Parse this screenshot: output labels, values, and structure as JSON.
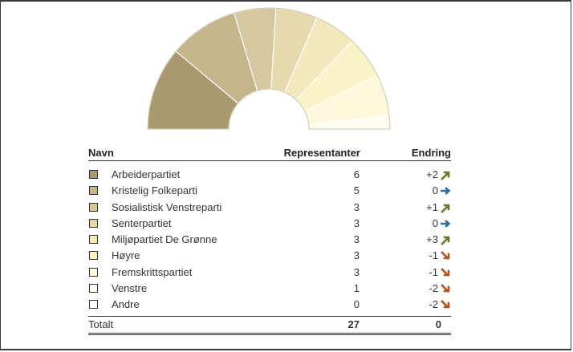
{
  "chart_data": {
    "type": "semicircle-seat",
    "total_seats": 27,
    "parties": [
      {
        "name": "Arbeiderpartiet",
        "seats": 6,
        "change": "+2",
        "direction": "up",
        "color": "#a89a6e"
      },
      {
        "name": "Kristelig Folkeparti",
        "seats": 5,
        "change": "0",
        "direction": "flat",
        "color": "#c4b68a"
      },
      {
        "name": "Sosialistisk Venstreparti",
        "seats": 3,
        "change": "+1",
        "direction": "up",
        "color": "#d5c79e"
      },
      {
        "name": "Senterpartiet",
        "seats": 3,
        "change": "0",
        "direction": "flat",
        "color": "#e6d9ae"
      },
      {
        "name": "Miljøpartiet De Grønne",
        "seats": 3,
        "change": "+3",
        "direction": "up",
        "color": "#f4e8bd"
      },
      {
        "name": "Høyre",
        "seats": 3,
        "change": "-1",
        "direction": "down",
        "color": "#fbf3c8"
      },
      {
        "name": "Fremskrittspartiet",
        "seats": 3,
        "change": "-1",
        "direction": "down",
        "color": "#fdf8dc"
      },
      {
        "name": "Venstre",
        "seats": 1,
        "change": "-2",
        "direction": "down",
        "color": "#fefcf0"
      },
      {
        "name": "Andre",
        "seats": 0,
        "change": "-2",
        "direction": "down",
        "color": "#ffffff"
      }
    ]
  },
  "table": {
    "col_name": "Navn",
    "col_reps": "Representanter",
    "col_change": "Endring",
    "total_label": "Totalt",
    "total_reps": "27",
    "total_change": "0"
  },
  "colors": {
    "arrow_up": "#5f7a1f",
    "arrow_flat": "#2f6e9e",
    "arrow_down": "#b5531c",
    "outline": "#333333"
  }
}
